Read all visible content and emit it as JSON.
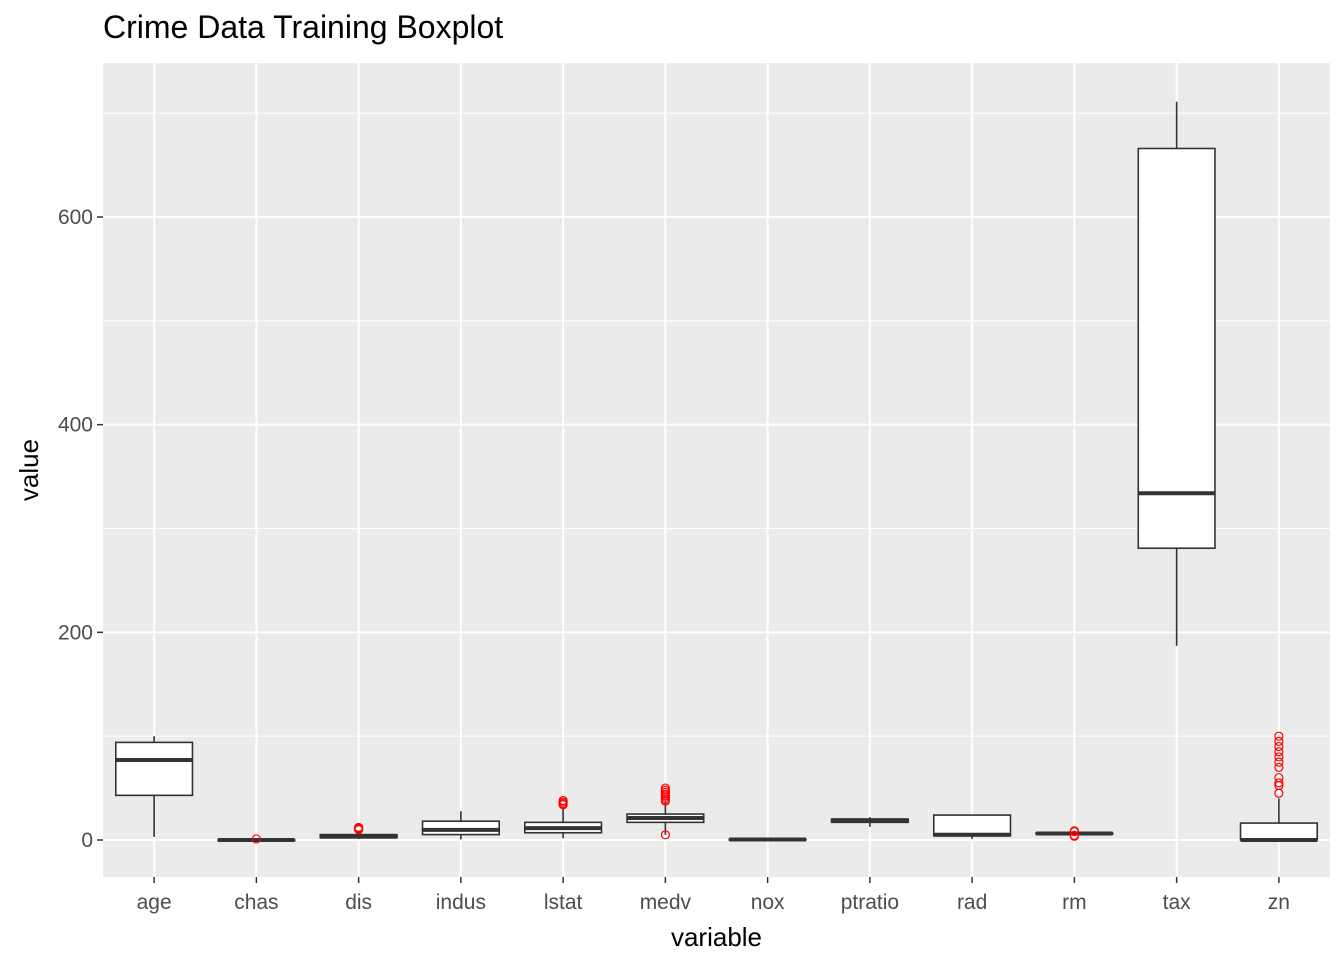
{
  "chart_data": {
    "type": "boxplot",
    "title": "Crime Data Training Boxplot",
    "xlabel": "variable",
    "ylabel": "value",
    "ylim": [
      -35,
      730
    ],
    "yticks": [
      0,
      200,
      400,
      600
    ],
    "grid": true,
    "legend": "none",
    "categories": [
      "age",
      "chas",
      "dis",
      "indus",
      "lstat",
      "medv",
      "nox",
      "ptratio",
      "rad",
      "rm",
      "tax",
      "zn"
    ],
    "boxes": [
      {
        "name": "age",
        "whisker_low": 3,
        "q1": 43,
        "median": 77,
        "q3": 94,
        "whisker_high": 100,
        "outliers": []
      },
      {
        "name": "chas",
        "whisker_low": 0,
        "q1": 0,
        "median": 0,
        "q3": 0,
        "whisker_high": 0,
        "outliers": [
          1
        ]
      },
      {
        "name": "dis",
        "whisker_low": 1.1,
        "q1": 2.1,
        "median": 3.2,
        "q3": 5.2,
        "whisker_high": 9.2,
        "outliers": [
          10,
          10.6,
          11.1,
          12.1
        ]
      },
      {
        "name": "indus",
        "whisker_low": 0.5,
        "q1": 5.2,
        "median": 9.7,
        "q3": 18.1,
        "whisker_high": 27.7,
        "outliers": []
      },
      {
        "name": "lstat",
        "whisker_low": 1.7,
        "q1": 7,
        "median": 11.4,
        "q3": 17,
        "whisker_high": 31,
        "outliers": [
          34,
          35,
          36.5,
          38
        ]
      },
      {
        "name": "medv",
        "whisker_low": 5,
        "q1": 17,
        "median": 21.2,
        "q3": 25,
        "whisker_high": 36.5,
        "outliers": [
          5,
          37.5,
          39,
          41,
          42.5,
          44,
          46,
          48,
          50
        ]
      },
      {
        "name": "nox",
        "whisker_low": 0.39,
        "q1": 0.45,
        "median": 0.54,
        "q3": 0.62,
        "whisker_high": 0.87,
        "outliers": []
      },
      {
        "name": "ptratio",
        "whisker_low": 12.6,
        "q1": 17,
        "median": 18.9,
        "q3": 20.2,
        "whisker_high": 22,
        "outliers": []
      },
      {
        "name": "rad",
        "whisker_low": 1,
        "q1": 4,
        "median": 5,
        "q3": 24,
        "whisker_high": 24,
        "outliers": []
      },
      {
        "name": "rm",
        "whisker_low": 4.9,
        "q1": 5.9,
        "median": 6.2,
        "q3": 6.6,
        "whisker_high": 7.7,
        "outliers": [
          3.6,
          4.5,
          8.1,
          8.4,
          8.8
        ]
      },
      {
        "name": "tax",
        "whisker_low": 187,
        "q1": 281,
        "median": 334,
        "q3": 666,
        "whisker_high": 711,
        "outliers": []
      },
      {
        "name": "zn",
        "whisker_low": 0,
        "q1": 0,
        "median": 0,
        "q3": 16.3,
        "whisker_high": 40,
        "outliers": [
          45,
          52.5,
          55,
          60,
          70,
          75,
          80,
          85,
          90,
          95,
          100
        ]
      }
    ],
    "colors": {
      "panel_background": "#ebebeb",
      "grid": "#ffffff",
      "box_fill": "#ffffff",
      "box_stroke": "#333333",
      "outlier": "#ff0000",
      "tick_text": "#4d4d4d",
      "tick_mark": "#333333"
    }
  }
}
